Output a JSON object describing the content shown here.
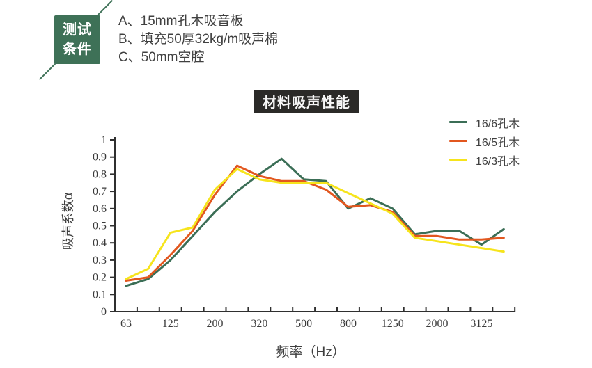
{
  "badge": {
    "line1": "测试",
    "line2": "条件"
  },
  "conditions": {
    "items": [
      "A、15mm孔木吸音板",
      "B、填充50厚32kg/m吸声棉",
      "C、50mm空腔"
    ]
  },
  "chart_data": {
    "type": "line",
    "title": "材料吸声性能",
    "xlabel": "频率（Hz）",
    "ylabel": "吸声系数α",
    "ylim": [
      0,
      1
    ],
    "y_tick_labels": [
      "0",
      "0.1",
      "0.2",
      "0.3",
      "0.4",
      "0.5",
      "0.6",
      "0.7",
      "0.8",
      "0.9",
      "1"
    ],
    "x_tick_labels": [
      "63",
      "125",
      "200",
      "320",
      "500",
      "800",
      "1250",
      "2000",
      "3125"
    ],
    "n_points": 18,
    "points_per_label": 2,
    "grid": false,
    "legend_position": "top-right",
    "axis_color": "#2f2f2f",
    "tick_label_color": "#3a3a3a",
    "series": [
      {
        "name": "16/6孔木",
        "color": "#3b6e56",
        "values": [
          0.15,
          0.19,
          0.3,
          0.44,
          0.58,
          0.7,
          0.8,
          0.89,
          0.77,
          0.76,
          0.6,
          0.66,
          0.6,
          0.45,
          0.47,
          0.47,
          0.39,
          0.48
        ]
      },
      {
        "name": "16/5孔木",
        "color": "#e2571f",
        "values": [
          0.18,
          0.2,
          0.33,
          0.47,
          0.68,
          0.85,
          0.79,
          0.76,
          0.76,
          0.71,
          0.61,
          0.62,
          0.58,
          0.44,
          0.44,
          0.42,
          0.42,
          0.43
        ]
      },
      {
        "name": "16/3孔木",
        "color": "#f6e41c",
        "values": [
          0.19,
          0.25,
          0.46,
          0.49,
          0.71,
          0.83,
          0.77,
          0.75,
          0.75,
          0.75,
          0.69,
          0.63,
          0.57,
          0.43,
          0.41,
          0.39,
          0.37,
          0.35
        ]
      }
    ]
  }
}
